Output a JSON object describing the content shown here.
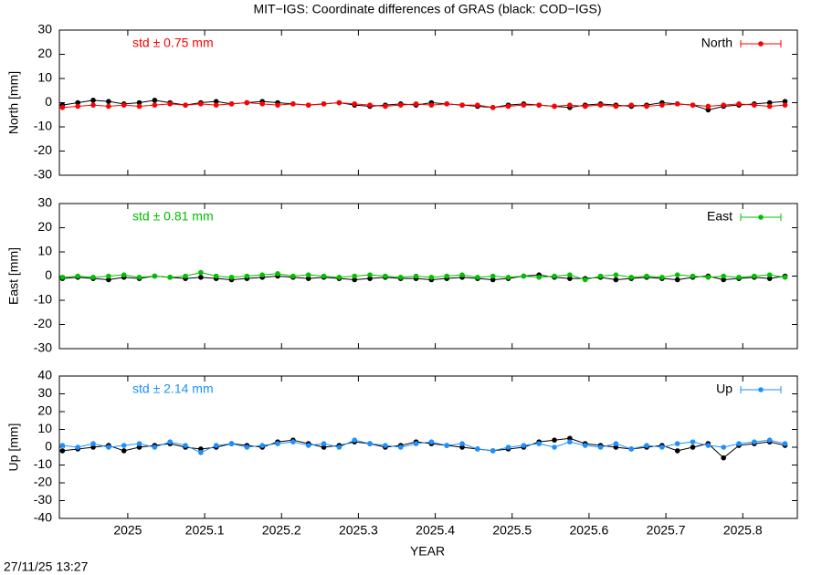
{
  "title": "MIT−IGS: Coordinate differences of GRAS (black: COD−IGS)",
  "xlabel": "YEAR",
  "timestamp": "27/11/25 13:27",
  "chart_data": [
    {
      "type": "line",
      "ylabel": "North [mm]",
      "annotation": "std ± 0.75 mm",
      "legend": "top right",
      "xlim": [
        2024.911,
        2025.871
      ],
      "xticks": [
        2025,
        2025.1,
        2025.2,
        2025.3,
        2025.4,
        2025.5,
        2025.6,
        2025.7,
        2025.8
      ],
      "ylim": [
        -30,
        30
      ],
      "yticks": [
        -30,
        -20,
        -10,
        0,
        10,
        20,
        30
      ],
      "x": [
        2024.915,
        2024.935,
        2024.955,
        2024.975,
        2024.995,
        2025.015,
        2025.035,
        2025.055,
        2025.075,
        2025.095,
        2025.115,
        2025.135,
        2025.155,
        2025.175,
        2025.195,
        2025.215,
        2025.235,
        2025.255,
        2025.275,
        2025.295,
        2025.315,
        2025.335,
        2025.355,
        2025.375,
        2025.395,
        2025.415,
        2025.435,
        2025.455,
        2025.475,
        2025.495,
        2025.515,
        2025.535,
        2025.555,
        2025.575,
        2025.595,
        2025.615,
        2025.635,
        2025.655,
        2025.675,
        2025.695,
        2025.715,
        2025.735,
        2025.755,
        2025.775,
        2025.795,
        2025.815,
        2025.835,
        2025.855
      ],
      "series": [
        {
          "color": "#000000",
          "values": [
            -1,
            0,
            1,
            0.5,
            -0.5,
            0,
            1,
            0,
            -1,
            0,
            0.5,
            -0.5,
            0,
            0.5,
            0,
            -0.5,
            -1,
            -0.5,
            0,
            -1,
            -1.5,
            -1,
            -0.5,
            -1,
            0,
            -0.5,
            -1,
            -1.5,
            -2,
            -1,
            -0.5,
            -1,
            -1.5,
            -2,
            -1,
            -0.5,
            -1,
            -1.5,
            -1,
            0,
            -0.5,
            -1,
            -3,
            -1.5,
            -1,
            -0.5,
            0,
            0.5
          ]
        },
        {
          "name": "North",
          "color": "#ff0000",
          "values": [
            -2,
            -1.5,
            -1,
            -1.5,
            -1,
            -1.5,
            -1,
            -0.5,
            -1,
            -0.5,
            -1,
            -0.5,
            0,
            -0.5,
            -1,
            -0.5,
            -1,
            -0.5,
            0,
            -0.5,
            -1,
            -1.5,
            -1,
            -0.5,
            -1,
            -0.5,
            -1,
            -1,
            -2,
            -1.5,
            -1,
            -1,
            -1.5,
            -1,
            -1.5,
            -1,
            -1.5,
            -1,
            -1.5,
            -1,
            -0.5,
            -1,
            -1.5,
            -1,
            -0.5,
            -1,
            -1.5,
            -1
          ]
        }
      ]
    },
    {
      "type": "line",
      "ylabel": "East [mm]",
      "annotation": "std ± 0.81 mm",
      "legend": "top right",
      "xlim": [
        2024.911,
        2025.871
      ],
      "xticks": [
        2025,
        2025.1,
        2025.2,
        2025.3,
        2025.4,
        2025.5,
        2025.6,
        2025.7,
        2025.8
      ],
      "ylim": [
        -30,
        30
      ],
      "yticks": [
        -30,
        -20,
        -10,
        0,
        10,
        20,
        30
      ],
      "x": [
        2024.915,
        2024.935,
        2024.955,
        2024.975,
        2024.995,
        2025.015,
        2025.035,
        2025.055,
        2025.075,
        2025.095,
        2025.115,
        2025.135,
        2025.155,
        2025.175,
        2025.195,
        2025.215,
        2025.235,
        2025.255,
        2025.275,
        2025.295,
        2025.315,
        2025.335,
        2025.355,
        2025.375,
        2025.395,
        2025.415,
        2025.435,
        2025.455,
        2025.475,
        2025.495,
        2025.515,
        2025.535,
        2025.555,
        2025.575,
        2025.595,
        2025.615,
        2025.635,
        2025.655,
        2025.675,
        2025.695,
        2025.715,
        2025.735,
        2025.755,
        2025.775,
        2025.795,
        2025.815,
        2025.835,
        2025.855
      ],
      "series": [
        {
          "color": "#000000",
          "values": [
            -1,
            -0.5,
            -1,
            -1.5,
            -0.5,
            -1,
            0,
            -0.5,
            -1,
            -0.5,
            -1,
            -1.5,
            -1,
            -0.5,
            0,
            -0.5,
            -1,
            -0.5,
            -1,
            -1.5,
            -1,
            -0.5,
            -1,
            -1,
            -1.5,
            -1,
            -0.5,
            -1,
            -1.5,
            -1,
            0,
            0.5,
            -0.5,
            -1,
            -1,
            -0.5,
            -1.5,
            -1,
            -0.5,
            -1,
            -1.5,
            -0.5,
            0,
            -1.5,
            -1,
            -0.5,
            -1,
            0
          ]
        },
        {
          "name": "East",
          "color": "#00c000",
          "values": [
            -0.5,
            0,
            -0.5,
            0,
            0.5,
            -0.5,
            0,
            -0.5,
            0,
            1.5,
            0,
            -0.5,
            0,
            0.5,
            1,
            0,
            0.5,
            0,
            -0.5,
            0,
            0.5,
            0,
            -0.5,
            0,
            -0.5,
            0,
            0.5,
            -0.5,
            0,
            -0.5,
            0,
            -0.5,
            0,
            0.5,
            -1.5,
            0,
            0.5,
            -0.5,
            0,
            -0.5,
            0.5,
            0,
            -0.5,
            0,
            -0.5,
            0,
            0.5,
            -0.5
          ]
        }
      ]
    },
    {
      "type": "line",
      "ylabel": "Up [mm]",
      "annotation": "std ± 2.14 mm",
      "legend": "top right",
      "xlim": [
        2024.911,
        2025.871
      ],
      "xticks": [
        2025,
        2025.1,
        2025.2,
        2025.3,
        2025.4,
        2025.5,
        2025.6,
        2025.7,
        2025.8
      ],
      "ylim": [
        -40,
        40
      ],
      "yticks": [
        -40,
        -30,
        -20,
        -10,
        0,
        10,
        20,
        30,
        40
      ],
      "x": [
        2024.915,
        2024.935,
        2024.955,
        2024.975,
        2024.995,
        2025.015,
        2025.035,
        2025.055,
        2025.075,
        2025.095,
        2025.115,
        2025.135,
        2025.155,
        2025.175,
        2025.195,
        2025.215,
        2025.235,
        2025.255,
        2025.275,
        2025.295,
        2025.315,
        2025.335,
        2025.355,
        2025.375,
        2025.395,
        2025.415,
        2025.435,
        2025.455,
        2025.475,
        2025.495,
        2025.515,
        2025.535,
        2025.555,
        2025.575,
        2025.595,
        2025.615,
        2025.635,
        2025.655,
        2025.675,
        2025.695,
        2025.715,
        2025.735,
        2025.755,
        2025.775,
        2025.795,
        2025.815,
        2025.835,
        2025.855
      ],
      "series": [
        {
          "color": "#000000",
          "values": [
            -2,
            -1,
            0,
            1,
            -2,
            0,
            1,
            2,
            0,
            -1,
            0,
            2,
            1,
            0,
            3,
            4,
            2,
            0,
            1,
            3,
            2,
            0,
            1,
            3,
            2,
            1,
            0,
            -1,
            -2,
            -1,
            0,
            3,
            4,
            5,
            2,
            1,
            0,
            -1,
            0,
            1,
            -2,
            0,
            2,
            -6,
            1,
            2,
            3,
            1
          ]
        },
        {
          "name": "Up",
          "color": "#1e90ff",
          "values": [
            1,
            0,
            2,
            0,
            1,
            2,
            0,
            3,
            1,
            -3,
            1,
            2,
            0,
            1,
            2,
            3,
            1,
            2,
            0,
            4,
            2,
            1,
            0,
            2,
            3,
            1,
            2,
            -1,
            -2,
            0,
            1,
            2,
            0,
            3,
            1,
            0,
            2,
            -1,
            1,
            0,
            2,
            3,
            1,
            0,
            2,
            3,
            4,
            2
          ]
        }
      ]
    }
  ]
}
